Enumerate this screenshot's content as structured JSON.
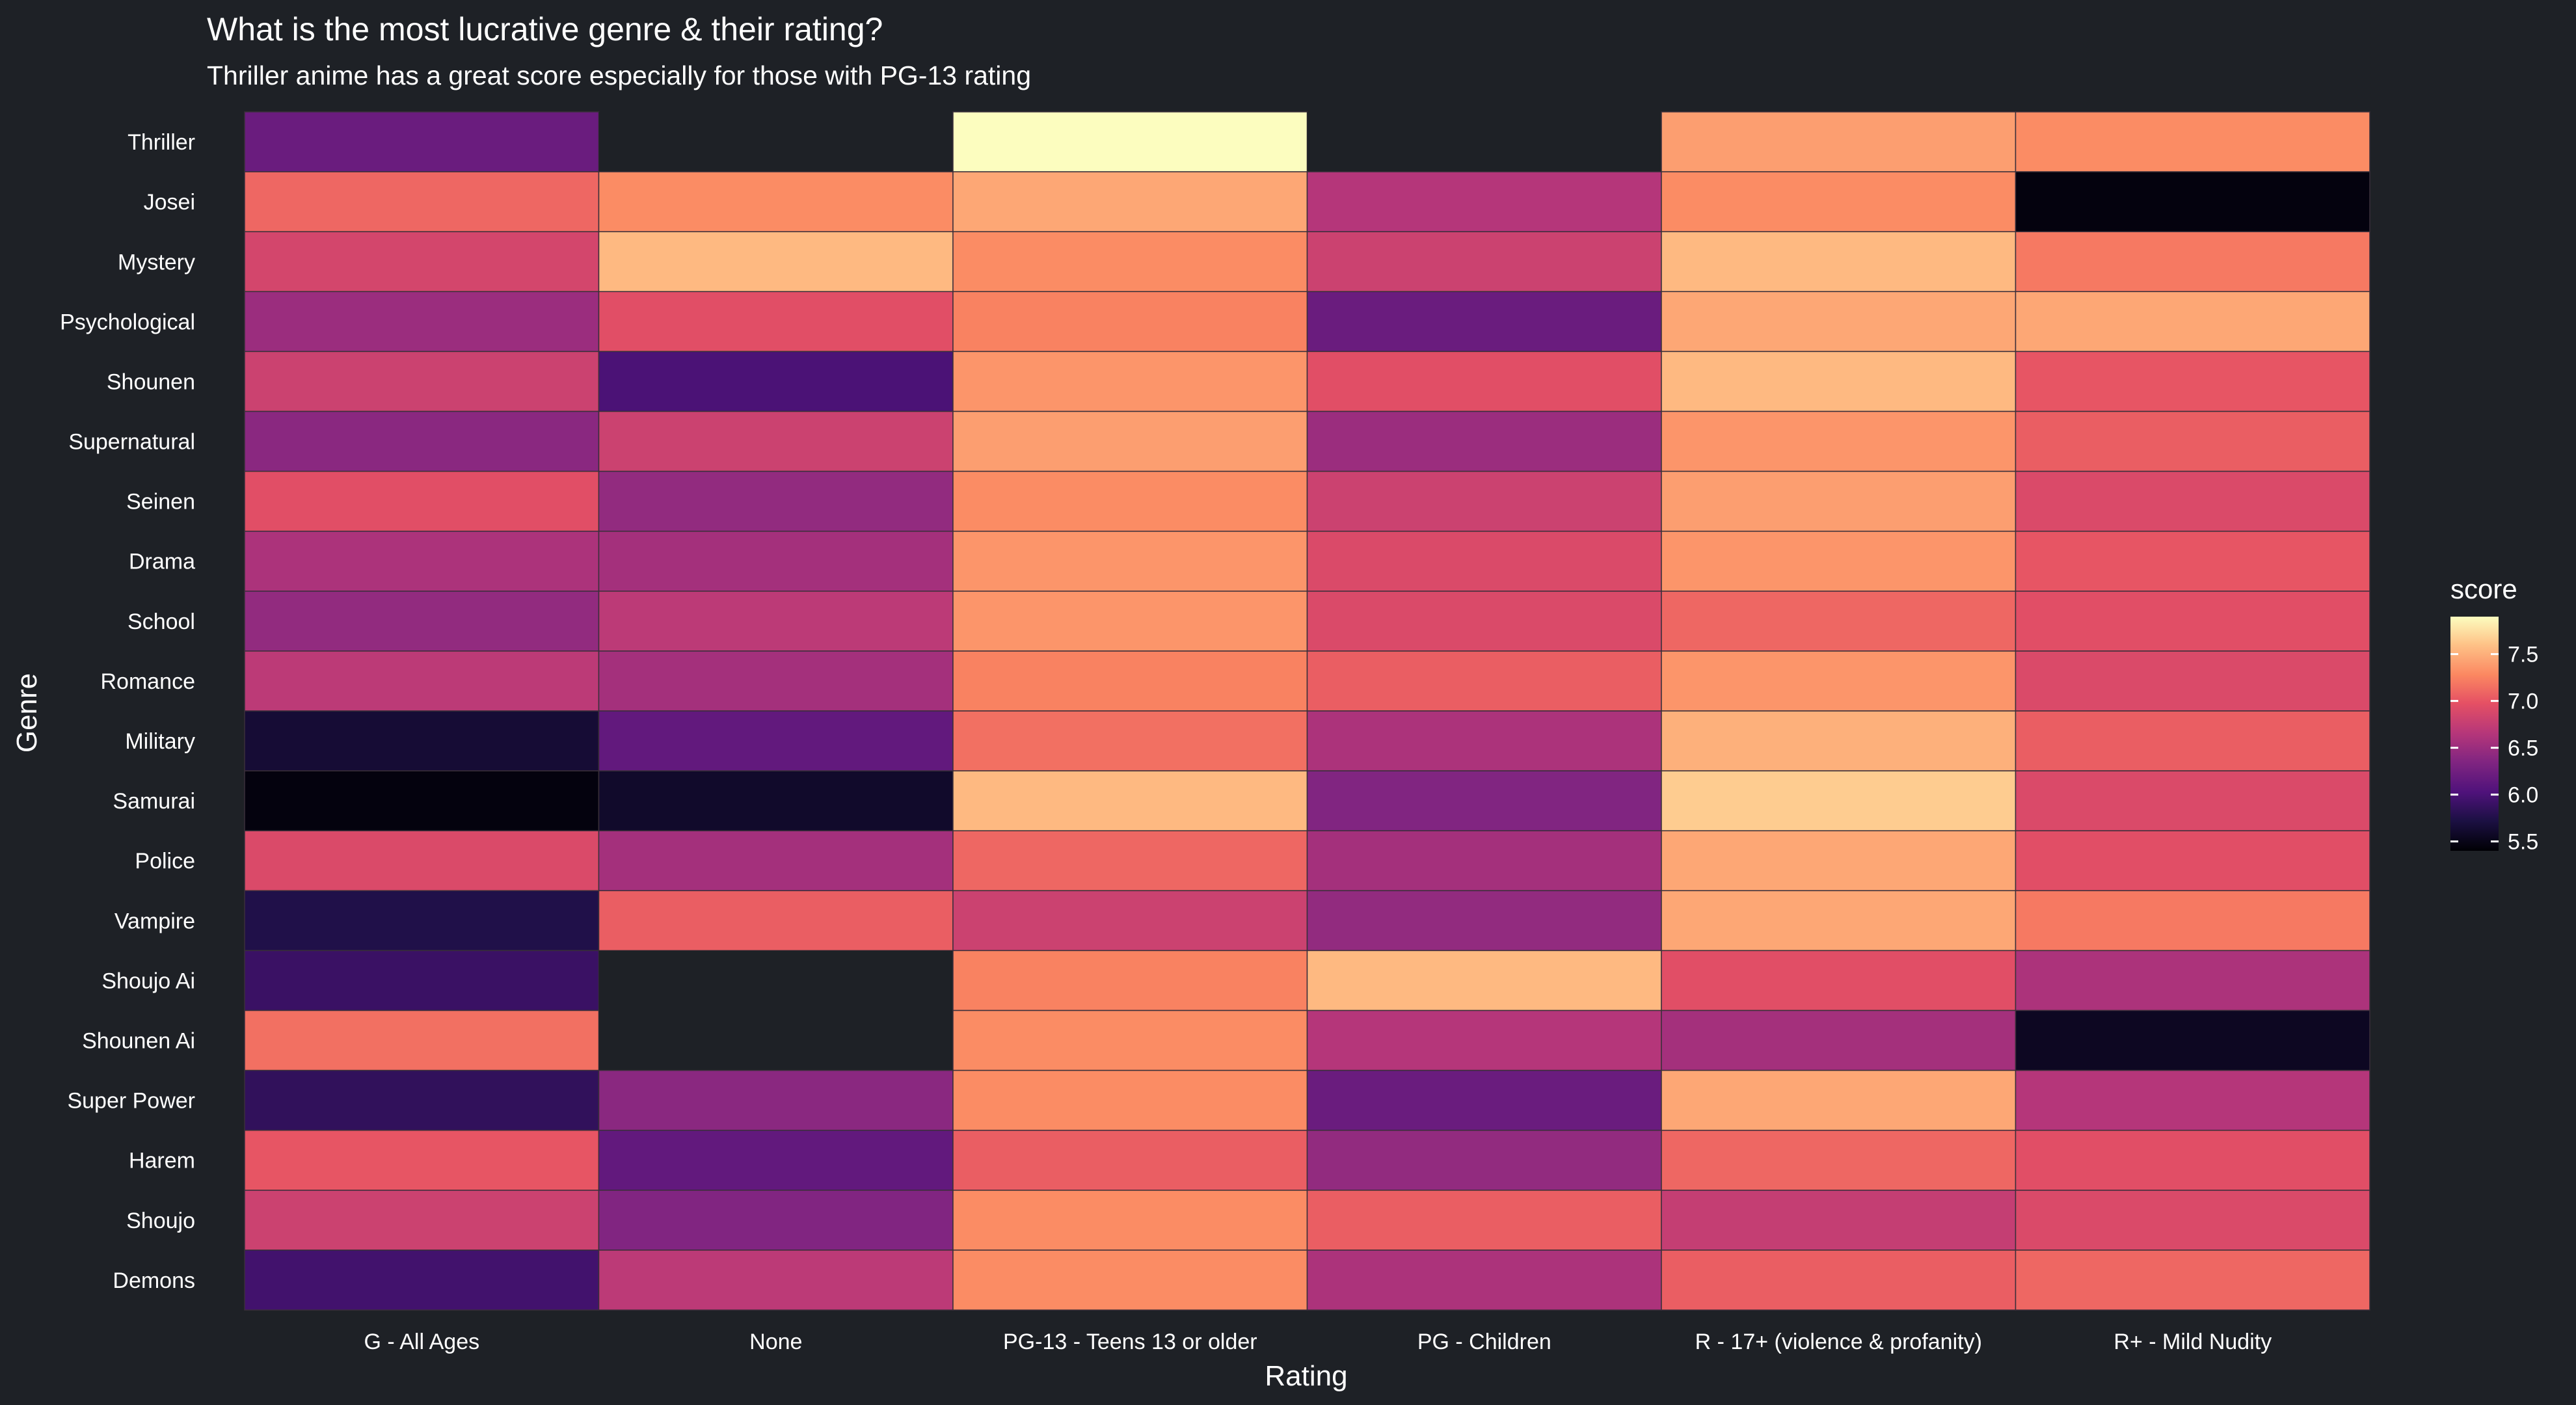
{
  "chart_data": {
    "type": "heatmap",
    "title": "What is the most lucrative genre & their rating?",
    "subtitle": "Thriller anime has a great score especially for those with PG-13 rating",
    "xlabel": "Rating",
    "ylabel": "Genre",
    "x_categories": [
      "G - All Ages",
      "None",
      "PG-13 - Teens 13 or older",
      "PG - Children",
      "R - 17+ (violence & profanity)",
      "R+ - Mild Nudity"
    ],
    "y_categories": [
      "Thriller",
      "Josei",
      "Mystery",
      "Psychological",
      "Shounen",
      "Supernatural",
      "Seinen",
      "Drama",
      "School",
      "Romance",
      "Military",
      "Samurai",
      "Police",
      "Vampire",
      "Shoujo Ai",
      "Shounen Ai",
      "Super Power",
      "Harem",
      "Shoujo",
      "Demons"
    ],
    "values": [
      [
        6.2,
        null,
        7.9,
        null,
        7.4,
        7.3
      ],
      [
        7.1,
        7.3,
        7.45,
        6.65,
        7.3,
        5.45
      ],
      [
        6.85,
        7.55,
        7.3,
        6.8,
        7.55,
        7.2
      ],
      [
        6.5,
        6.95,
        7.25,
        6.2,
        7.45,
        7.45
      ],
      [
        6.8,
        6.0,
        7.35,
        6.95,
        7.55,
        7.0
      ],
      [
        6.4,
        6.8,
        7.4,
        6.5,
        7.35,
        7.05
      ],
      [
        6.95,
        6.45,
        7.3,
        6.8,
        7.4,
        6.9
      ],
      [
        6.6,
        6.55,
        7.35,
        6.9,
        7.35,
        7.0
      ],
      [
        6.45,
        6.7,
        7.35,
        6.9,
        7.1,
        6.95
      ],
      [
        6.7,
        6.55,
        7.25,
        7.05,
        7.35,
        6.9
      ],
      [
        5.65,
        6.15,
        7.15,
        6.6,
        7.5,
        7.05
      ],
      [
        5.45,
        5.6,
        7.55,
        6.35,
        7.65,
        6.9
      ],
      [
        6.9,
        6.55,
        7.1,
        6.55,
        7.45,
        6.95
      ],
      [
        5.75,
        7.05,
        6.8,
        6.45,
        7.45,
        7.2
      ],
      [
        5.9,
        null,
        7.25,
        7.55,
        6.95,
        6.6
      ],
      [
        7.15,
        null,
        7.3,
        6.65,
        6.55,
        5.55
      ],
      [
        5.85,
        6.4,
        7.3,
        6.2,
        7.45,
        6.65
      ],
      [
        7.0,
        6.15,
        7.05,
        6.45,
        7.1,
        6.95
      ],
      [
        6.8,
        6.35,
        7.3,
        7.05,
        6.75,
        6.9
      ],
      [
        5.95,
        6.7,
        7.3,
        6.6,
        7.05,
        7.1
      ]
    ],
    "missing_value_color": "#1e2126",
    "color_scale": "magma",
    "legend": {
      "title": "score",
      "range": [
        5.4,
        7.9
      ],
      "ticks": [
        {
          "value": 7.5,
          "label": "7.5"
        },
        {
          "value": 7.0,
          "label": "7.0"
        },
        {
          "value": 6.5,
          "label": "6.5"
        },
        {
          "value": 6.0,
          "label": "6.0"
        },
        {
          "value": 5.5,
          "label": "5.5"
        }
      ],
      "position": "right"
    },
    "background_color": "#1e2126",
    "text_color": "#ffffff",
    "grid": false
  }
}
